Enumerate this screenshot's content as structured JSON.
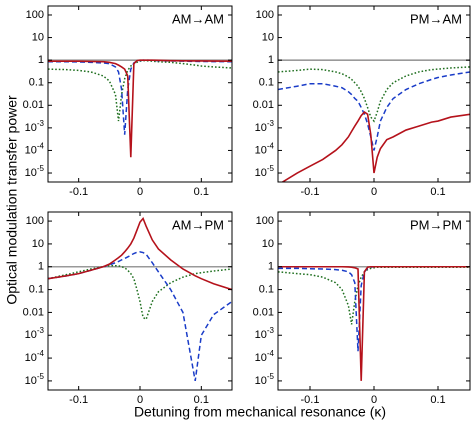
{
  "ylabel": "Optical modulation transfer power",
  "xlabel": "Detuning from mechanical resonance (κ)",
  "chart_data": [
    {
      "type": "line",
      "title": "AM→AM",
      "log_y": true,
      "x": [
        -0.15,
        -0.12,
        -0.1,
        -0.08,
        -0.06,
        -0.05,
        -0.04,
        -0.035,
        -0.03,
        -0.025,
        -0.02,
        -0.015,
        -0.01,
        -0.005,
        0,
        0.005,
        0.01,
        0.02,
        0.03,
        0.05,
        0.07,
        0.09,
        0.1,
        0.12,
        0.15
      ],
      "xlim": [
        -0.15,
        0.15
      ],
      "xticks": [
        -0.1,
        0,
        0.1
      ],
      "ylim": [
        4e-06,
        250
      ],
      "yticks": [
        100,
        10,
        1,
        0.1,
        0.01,
        {
          "value": 0.001,
          "label": "10-3"
        },
        {
          "value": 0.0001,
          "label": "10-4"
        },
        {
          "value": 1e-05,
          "label": "10-5"
        }
      ],
      "series": [
        {
          "color": "#999999",
          "dash": "solid",
          "values": [
            1,
            1,
            1,
            1,
            1,
            1,
            1,
            1,
            1,
            1,
            1,
            1,
            1,
            1,
            1,
            1,
            1,
            1,
            1,
            1,
            1,
            1,
            1,
            1,
            1
          ]
        },
        {
          "color": "#1f6f1f",
          "dash": "dotted",
          "values": [
            0.4,
            0.38,
            0.35,
            0.3,
            0.2,
            0.12,
            0.03,
            0.002,
            0.03,
            0.15,
            0.35,
            0.55,
            0.7,
            0.8,
            0.9,
            0.95,
            0.95,
            0.9,
            0.85,
            0.8,
            0.7,
            0.6,
            0.55,
            0.5,
            0.45
          ]
        },
        {
          "color": "#1a3cc8",
          "dash": "dashed",
          "values": [
            0.85,
            0.85,
            0.83,
            0.8,
            0.75,
            0.7,
            0.5,
            0.3,
            0.05,
            0.0005,
            0.05,
            0.4,
            0.75,
            0.9,
            0.95,
            1,
            1,
            0.98,
            0.95,
            0.92,
            0.9,
            0.88,
            0.87,
            0.86,
            0.85
          ]
        },
        {
          "color": "#b5121b",
          "dash": "solid",
          "values": [
            0.9,
            0.9,
            0.9,
            0.88,
            0.85,
            0.8,
            0.7,
            0.6,
            0.5,
            0.4,
            0.2,
            5e-05,
            0.7,
            0.95,
            1,
            1,
            1,
            1,
            0.98,
            0.95,
            0.93,
            0.92,
            0.92,
            0.91,
            0.9
          ]
        }
      ]
    },
    {
      "type": "line",
      "title": "PM→AM",
      "log_y": true,
      "x": [
        -0.15,
        -0.12,
        -0.1,
        -0.08,
        -0.06,
        -0.05,
        -0.04,
        -0.035,
        -0.03,
        -0.025,
        -0.02,
        -0.015,
        -0.01,
        -0.005,
        0,
        0.005,
        0.01,
        0.02,
        0.03,
        0.05,
        0.07,
        0.09,
        0.1,
        0.12,
        0.15
      ],
      "xlim": [
        -0.15,
        0.15
      ],
      "xticks": [
        -0.1,
        0,
        0.1
      ],
      "ylim": [
        4e-06,
        250
      ],
      "yticks": [
        100,
        10,
        1,
        0.1,
        0.01,
        {
          "value": 0.001,
          "label": "10-3"
        },
        {
          "value": 0.0001,
          "label": "10-4"
        },
        {
          "value": 1e-05,
          "label": "10-5"
        }
      ],
      "series": [
        {
          "color": "#999999",
          "dash": "solid",
          "values": [
            1,
            1,
            1,
            1,
            1,
            1,
            1,
            1,
            1,
            1,
            1,
            1,
            1,
            1,
            1,
            1,
            1,
            1,
            1,
            1,
            1,
            1,
            1,
            1,
            1
          ]
        },
        {
          "color": "#1f6f1f",
          "dash": "dotted",
          "values": [
            0.3,
            0.35,
            0.4,
            0.38,
            0.3,
            0.25,
            0.18,
            0.14,
            0.1,
            0.07,
            0.04,
            0.02,
            0.008,
            0.003,
            0.002,
            0.005,
            0.015,
            0.05,
            0.1,
            0.2,
            0.3,
            0.38,
            0.4,
            0.45,
            0.5
          ]
        },
        {
          "color": "#1a3cc8",
          "dash": "dashed",
          "values": [
            0.05,
            0.07,
            0.09,
            0.09,
            0.07,
            0.06,
            0.04,
            0.03,
            0.02,
            0.015,
            0.008,
            0.004,
            0.0015,
            0.0004,
            0.0001,
            0.0004,
            0.002,
            0.008,
            0.02,
            0.05,
            0.09,
            0.14,
            0.17,
            0.22,
            0.3
          ]
        },
        {
          "color": "#b5121b",
          "dash": "solid",
          "values": [
            3e-06,
            1e-05,
            2e-05,
            4e-05,
            0.0001,
            0.00018,
            0.0004,
            0.0007,
            0.0012,
            0.002,
            0.0035,
            0.005,
            0.004,
            0.0005,
            1e-05,
            5e-05,
            0.00012,
            0.0003,
            0.0004,
            0.0008,
            0.0012,
            0.0018,
            0.002,
            0.003,
            0.004
          ]
        }
      ]
    },
    {
      "type": "line",
      "title": "AM→PM",
      "log_y": true,
      "x": [
        -0.15,
        -0.12,
        -0.1,
        -0.08,
        -0.06,
        -0.05,
        -0.04,
        -0.035,
        -0.03,
        -0.025,
        -0.02,
        -0.015,
        -0.01,
        -0.005,
        0,
        0.005,
        0.01,
        0.02,
        0.03,
        0.05,
        0.07,
        0.09,
        0.1,
        0.12,
        0.15
      ],
      "xlim": [
        -0.15,
        0.15
      ],
      "xticks": [
        -0.1,
        0,
        0.1
      ],
      "ylim": [
        4e-06,
        250
      ],
      "yticks": [
        100,
        10,
        1,
        0.1,
        0.01,
        {
          "value": 0.001,
          "label": "10-3"
        },
        {
          "value": 0.0001,
          "label": "10-4"
        },
        {
          "value": 1e-05,
          "label": "10-5"
        }
      ],
      "series": [
        {
          "color": "#999999",
          "dash": "solid",
          "values": [
            1,
            1,
            1,
            1,
            1,
            1,
            1,
            1,
            1,
            1,
            1,
            1,
            1,
            1,
            1,
            1,
            1,
            1,
            1,
            1,
            1,
            1,
            1,
            1,
            1
          ]
        },
        {
          "color": "#1f6f1f",
          "dash": "dotted",
          "values": [
            0.3,
            0.45,
            0.6,
            0.8,
            1,
            1.1,
            1.1,
            1.1,
            1,
            0.9,
            0.7,
            0.5,
            0.3,
            0.1,
            0.03,
            0.006,
            0.005,
            0.03,
            0.08,
            0.2,
            0.35,
            0.5,
            0.55,
            0.65,
            0.8
          ]
        },
        {
          "color": "#1a3cc8",
          "dash": "dashed",
          "values": [
            0.3,
            0.4,
            0.5,
            0.7,
            1,
            1.2,
            1.5,
            1.7,
            2,
            2.3,
            2.7,
            3.2,
            3.8,
            4.3,
            4.5,
            4.2,
            3.5,
            1.5,
            0.6,
            0.1,
            0.01,
            1e-05,
            0.001,
            0.008,
            0.03
          ]
        },
        {
          "color": "#b5121b",
          "dash": "solid",
          "values": [
            0.3,
            0.4,
            0.5,
            0.7,
            1,
            1.3,
            2,
            2.5,
            3.2,
            4.5,
            6.5,
            10,
            18,
            40,
            90,
            130,
            60,
            15,
            6,
            2,
            0.8,
            0.4,
            0.3,
            0.18,
            0.1
          ]
        }
      ]
    },
    {
      "type": "line",
      "title": "PM→PM",
      "log_y": true,
      "x": [
        -0.15,
        -0.12,
        -0.1,
        -0.08,
        -0.06,
        -0.05,
        -0.04,
        -0.035,
        -0.03,
        -0.025,
        -0.02,
        -0.015,
        -0.01,
        -0.005,
        0,
        0.005,
        0.01,
        0.02,
        0.03,
        0.05,
        0.07,
        0.09,
        0.1,
        0.12,
        0.15
      ],
      "xlim": [
        -0.15,
        0.15
      ],
      "xticks": [
        -0.1,
        0,
        0.1
      ],
      "ylim": [
        4e-06,
        250
      ],
      "yticks": [
        100,
        10,
        1,
        0.1,
        0.01,
        {
          "value": 0.001,
          "label": "10-3"
        },
        {
          "value": 0.0001,
          "label": "10-4"
        },
        {
          "value": 1e-05,
          "label": "10-5"
        }
      ],
      "series": [
        {
          "color": "#999999",
          "dash": "solid",
          "values": [
            1,
            1,
            1,
            1,
            1,
            1,
            1,
            1,
            1,
            1,
            1,
            1,
            1,
            1,
            1,
            1,
            1,
            1,
            1,
            1,
            1,
            1,
            1,
            1,
            1
          ]
        },
        {
          "color": "#1f6f1f",
          "dash": "dotted",
          "values": [
            0.6,
            0.5,
            0.45,
            0.35,
            0.2,
            0.1,
            0.02,
            0.003,
            0.03,
            0.15,
            0.35,
            0.6,
            0.75,
            0.85,
            0.9,
            0.95,
            0.95,
            0.95,
            0.95,
            0.95,
            0.95,
            0.95,
            0.95,
            0.95,
            0.95
          ]
        },
        {
          "color": "#1a3cc8",
          "dash": "dashed",
          "values": [
            0.85,
            0.85,
            0.82,
            0.8,
            0.75,
            0.7,
            0.6,
            0.45,
            0.2,
            0.0002,
            0.15,
            0.6,
            0.85,
            0.95,
            1,
            1,
            1,
            1,
            1,
            1,
            1,
            1,
            1,
            1,
            1
          ]
        },
        {
          "color": "#b5121b",
          "dash": "solid",
          "values": [
            1,
            1,
            1,
            1,
            1,
            1,
            0.98,
            0.95,
            0.9,
            0.8,
            1e-05,
            0.6,
            0.95,
            1,
            1,
            1,
            1,
            1,
            1,
            1,
            1,
            1,
            1,
            1,
            1
          ]
        }
      ]
    }
  ]
}
